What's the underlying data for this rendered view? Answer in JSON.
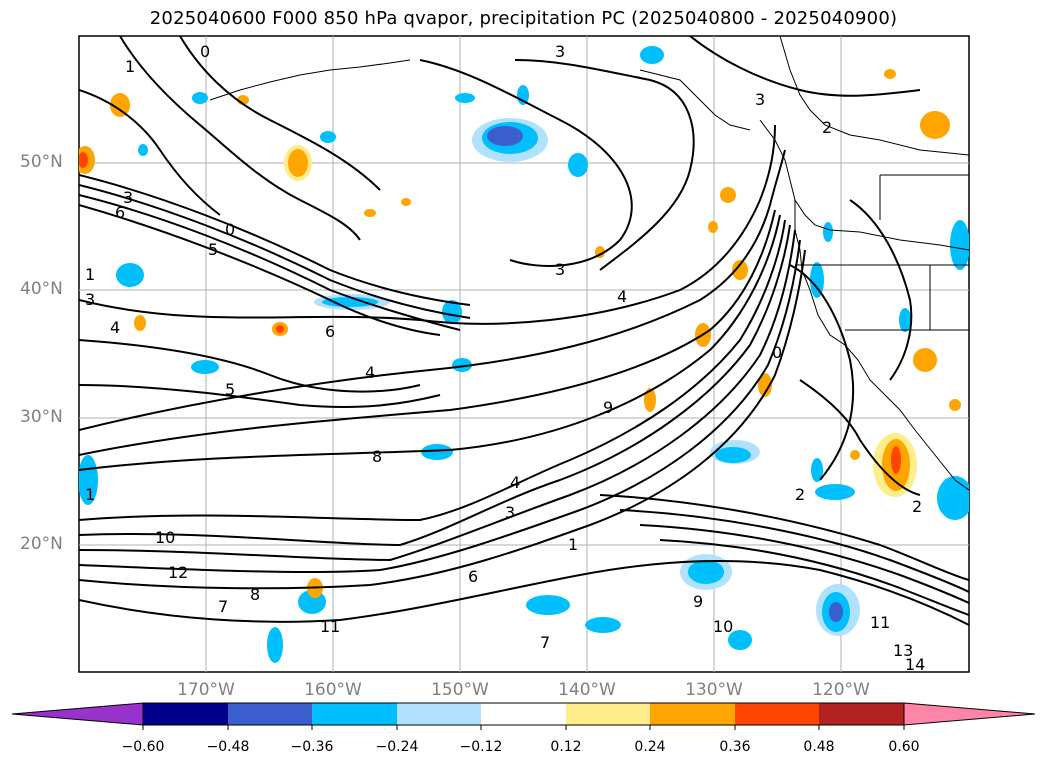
{
  "title": "2025040600 F000 850 hPa qvapor, precipitation PC (2025040800 - 2025040900)",
  "map": {
    "lat_labels": [
      "50°N",
      "40°N",
      "30°N",
      "20°N"
    ],
    "lon_labels": [
      "170°W",
      "160°W",
      "150°W",
      "140°W",
      "130°W",
      "120°W"
    ],
    "contour_labels": [
      "0",
      "1",
      "3",
      "6",
      "5",
      "1",
      "3",
      "4",
      "0",
      "1",
      "8",
      "10",
      "12",
      "13",
      "14",
      "11",
      "9",
      "7",
      "3",
      "2",
      "4",
      "5",
      "6",
      "9",
      "10",
      "11",
      "8",
      "3",
      "4",
      "2",
      "1",
      "0",
      "3",
      "4",
      "6",
      "7",
      "3",
      "2"
    ],
    "colors": {
      "land_border": "#000000",
      "grid": "#b0b0b0",
      "contour": "#000000"
    }
  },
  "colorbar": {
    "ticks": [
      "−0.60",
      "−0.48",
      "−0.36",
      "−0.24",
      "−0.12",
      "0.12",
      "0.24",
      "0.36",
      "0.48",
      "0.60"
    ],
    "colors": [
      "#9932cc",
      "#00008b",
      "#3a5fcd",
      "#00bfff",
      "#b0e2ff",
      "#ffffff",
      "#ffec8b",
      "#ffa500",
      "#ff4500",
      "#b22222",
      "#ff85a8"
    ]
  }
}
